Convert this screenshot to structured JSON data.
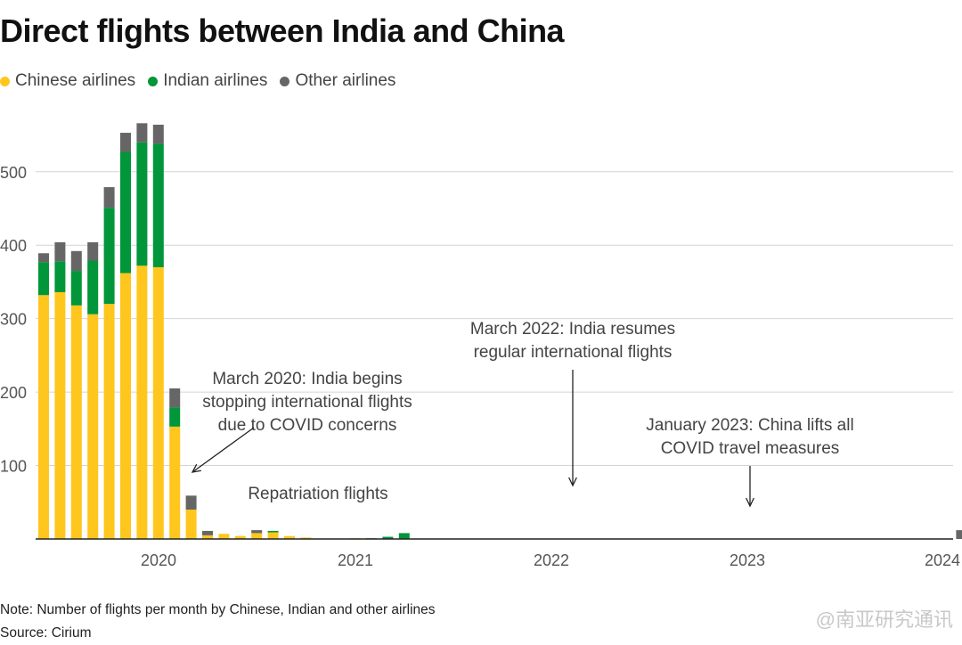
{
  "chart_data": {
    "type": "bar",
    "stacked": true,
    "title": "Direct flights between India and China",
    "legend_placement": "top-left",
    "grid": true,
    "ylim": [
      0,
      590
    ],
    "yticks": [
      100,
      200,
      300,
      400,
      500
    ],
    "xticks": [
      "2020",
      "2021",
      "2022",
      "2023",
      "2024"
    ],
    "series": [
      {
        "name": "Chinese airlines",
        "color": "#FFC61E",
        "values": [
          332,
          336,
          318,
          306,
          320,
          362,
          372,
          370,
          153,
          40,
          5,
          7,
          4,
          8,
          9,
          4,
          2,
          0,
          0,
          1,
          0,
          0,
          0,
          0,
          0,
          0,
          0,
          0,
          0,
          0,
          0,
          0,
          0,
          0,
          0,
          0,
          0,
          0,
          0,
          0,
          0,
          0,
          0,
          0,
          0,
          0,
          0,
          0,
          0,
          0,
          0,
          0,
          0,
          0,
          0,
          0,
          0
        ]
      },
      {
        "name": "Indian airlines",
        "color": "#009639",
        "values": [
          45,
          42,
          47,
          73,
          131,
          165,
          168,
          168,
          26,
          0,
          0,
          0,
          0,
          0,
          2,
          0,
          0,
          0,
          0,
          0,
          1,
          3,
          8,
          0,
          0,
          0,
          0,
          0,
          0,
          0,
          0,
          0,
          0,
          0,
          0,
          0,
          0,
          0,
          0,
          0,
          0,
          0,
          0,
          0,
          0,
          0,
          0,
          0,
          0,
          0,
          0,
          0,
          0,
          0,
          0,
          0,
          0
        ]
      },
      {
        "name": "Other airlines",
        "color": "#666666",
        "values": [
          12,
          26,
          27,
          25,
          28,
          26,
          26,
          26,
          26,
          19,
          6,
          0,
          0,
          4,
          0,
          0,
          0,
          0,
          0,
          0,
          0,
          0,
          0,
          0,
          0,
          0,
          0,
          0,
          0,
          0,
          0,
          0,
          0,
          0,
          0,
          0,
          0,
          0,
          0,
          0,
          0,
          0,
          0,
          0,
          0,
          0,
          0,
          0,
          0,
          0,
          0,
          0,
          0,
          0,
          0,
          0,
          12
        ]
      }
    ],
    "annotations": [
      {
        "lines": [
          "March 2020: India begins",
          "stopping international flights",
          "due to COVID concerns"
        ]
      },
      {
        "lines": [
          "Repatriation flights"
        ]
      },
      {
        "lines": [
          "March 2022: India resumes",
          "regular international flights"
        ]
      },
      {
        "lines": [
          "January 2023: China lifts all",
          "COVID travel measures"
        ]
      }
    ]
  },
  "legend": [
    {
      "label": "Chinese airlines",
      "color": "#FFC61E"
    },
    {
      "label": "Indian airlines",
      "color": "#009639"
    },
    {
      "label": "Other airlines",
      "color": "#666666"
    }
  ],
  "note": "Note: Number of flights per month by Chinese, Indian and other airlines",
  "source": "Source: Cirium",
  "watermark": "@南亚研究通讯"
}
